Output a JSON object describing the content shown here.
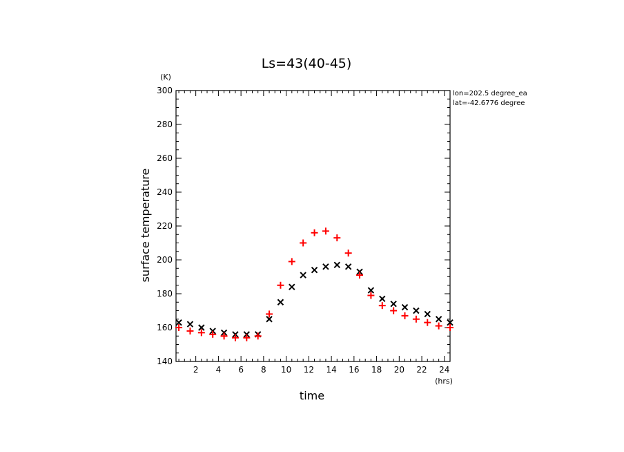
{
  "chart_data": {
    "type": "scatter",
    "title": "Ls=43(40-45)",
    "xlabel": "time",
    "ylabel": "surface temperature",
    "x_unit": "(hrs)",
    "y_unit": "(K)",
    "xlim": [
      0.25,
      24.5
    ],
    "ylim": [
      140,
      300
    ],
    "x_ticks": [
      2,
      4,
      6,
      8,
      10,
      12,
      14,
      16,
      18,
      20,
      22,
      24
    ],
    "y_ticks": [
      140,
      160,
      180,
      200,
      220,
      240,
      260,
      280,
      300
    ],
    "grid": false,
    "annotations": [
      "lon=202.5 degree_ea",
      "lat=-42.6776 degree"
    ],
    "x": [
      0.5,
      1.5,
      2.5,
      3.5,
      4.5,
      5.5,
      6.5,
      7.5,
      8.5,
      9.5,
      10.5,
      11.5,
      12.5,
      13.5,
      14.5,
      15.5,
      16.5,
      17.5,
      18.5,
      19.5,
      20.5,
      21.5,
      22.5,
      23.5,
      24.5
    ],
    "series": [
      {
        "marker": "x",
        "color": "#000000",
        "values": [
          163,
          162,
          160,
          158,
          157,
          156,
          156,
          156,
          165,
          175,
          184,
          191,
          194,
          196,
          197,
          196,
          193,
          182,
          177,
          174,
          172,
          170,
          168,
          165,
          163
        ]
      },
      {
        "marker": "+",
        "color": "#ff0000",
        "values": [
          160,
          158,
          157,
          156,
          155,
          154,
          154,
          155,
          168,
          185,
          199,
          210,
          216,
          217,
          213,
          204,
          191,
          179,
          173,
          170,
          167,
          165,
          163,
          161,
          160
        ]
      }
    ]
  }
}
